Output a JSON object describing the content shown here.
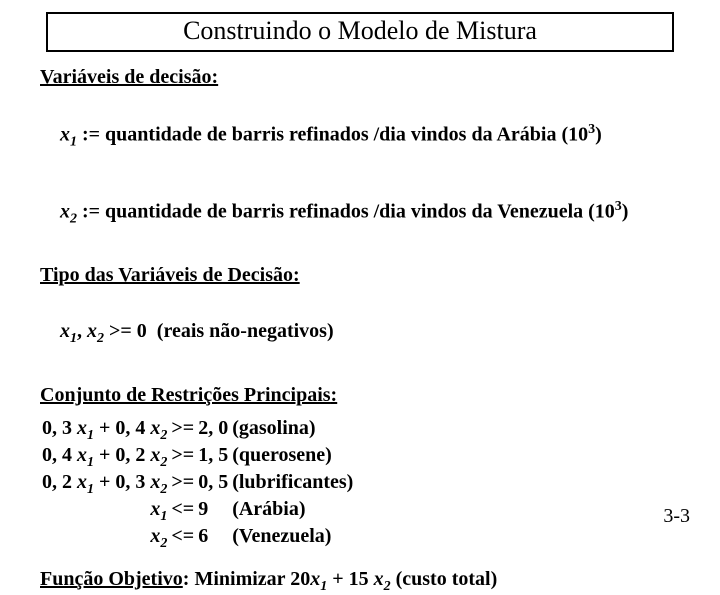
{
  "title": "Construindo o Modelo de Mistura",
  "section_vars": "Variáveis de decisão",
  "x1_prefix": "x",
  "x1_sub": "1",
  "x1_text": " := quantidade de barris refinados /dia vindos da Arábia (10",
  "x1_sup": "3",
  "x1_tail": ")",
  "x2_prefix": "x",
  "x2_sub": "2",
  "x2_text": " := quantidade de barris refinados /dia vindos da Venezuela (10",
  "x2_sup": "3",
  "x2_tail": ")",
  "section_tipo": "Tipo das Variáveis de Decisão",
  "tipo_x1": "x",
  "tipo_s1": "1",
  "tipo_sep": ", ",
  "tipo_x2": "x",
  "tipo_s2": "2",
  "tipo_tail": " >= 0  (reais não-negativos)",
  "section_restr": "Conjunto de Restrições Principais",
  "constraints": [
    {
      "lhs_a": "0, 3 ",
      "lhs_b": " + 0, 4 ",
      "cmp": ">=",
      "rhs": "2, 0",
      "label": "(gasolina)"
    },
    {
      "lhs_a": "0, 4 ",
      "lhs_b": " + 0, 2 ",
      "cmp": ">=",
      "rhs": "1, 5",
      "label": "(querosene)"
    },
    {
      "lhs_a": "0, 2 ",
      "lhs_b": " + 0, 3 ",
      "cmp": ">=",
      "rhs": "0, 5",
      "label": "(lubrificantes)"
    }
  ],
  "bounds": [
    {
      "var": "x",
      "sub": "1",
      "cmp": "<=",
      "rhs": "9",
      "label": "(Arábia)"
    },
    {
      "var": "x",
      "sub": "2",
      "cmp": "<=",
      "rhs": "6",
      "label": "(Venezuela)"
    }
  ],
  "obj_label": "Função Objetivo",
  "obj_colon": ":   ",
  "obj_word": "Minimizar   ",
  "obj_c1": "20",
  "obj_v1": "x",
  "obj_s1": "1",
  "obj_plus": " + 15 ",
  "obj_v2": "x",
  "obj_s2": "2",
  "obj_tail": "   (custo total)",
  "pagenum": "3-3",
  "colon": ":"
}
